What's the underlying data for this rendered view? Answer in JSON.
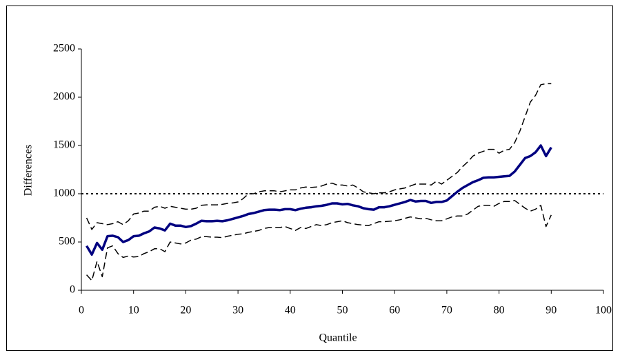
{
  "chart_data": {
    "type": "line",
    "x_label": "Quantile",
    "y_label": "Differences",
    "x": [
      1,
      2,
      3,
      4,
      5,
      6,
      7,
      8,
      9,
      10,
      11,
      12,
      13,
      14,
      15,
      16,
      17,
      18,
      19,
      20,
      21,
      22,
      23,
      24,
      25,
      26,
      27,
      28,
      29,
      30,
      31,
      32,
      33,
      34,
      35,
      36,
      37,
      38,
      39,
      40,
      41,
      42,
      43,
      44,
      45,
      46,
      47,
      48,
      49,
      50,
      51,
      52,
      53,
      54,
      55,
      56,
      57,
      58,
      59,
      60,
      61,
      62,
      63,
      64,
      65,
      66,
      67,
      68,
      69,
      70,
      71,
      72,
      73,
      74,
      75,
      76,
      77,
      78,
      79,
      80,
      81,
      82,
      83,
      84,
      85,
      86,
      87,
      88,
      89,
      90
    ],
    "series": [
      {
        "color": "#000080",
        "linestyle": "solid",
        "linewidth": 3.5,
        "values": [
          460,
          370,
          490,
          420,
          560,
          565,
          550,
          500,
          520,
          560,
          565,
          590,
          610,
          650,
          640,
          620,
          690,
          670,
          670,
          655,
          665,
          690,
          720,
          715,
          715,
          720,
          715,
          725,
          740,
          755,
          770,
          790,
          800,
          815,
          830,
          835,
          835,
          830,
          840,
          840,
          830,
          845,
          855,
          860,
          870,
          875,
          885,
          900,
          900,
          890,
          895,
          880,
          870,
          850,
          840,
          835,
          860,
          860,
          870,
          885,
          900,
          915,
          935,
          920,
          925,
          925,
          905,
          915,
          915,
          930,
          975,
          1020,
          1060,
          1090,
          1120,
          1140,
          1165,
          1170,
          1170,
          1175,
          1180,
          1185,
          1230,
          1300,
          1370,
          1390,
          1430,
          1500,
          1390,
          1480
        ]
      },
      {
        "color": "#000000",
        "linestyle": "dashed",
        "linewidth": 1.5,
        "values": [
          750,
          630,
          700,
          690,
          680,
          690,
          710,
          680,
          720,
          790,
          800,
          820,
          820,
          860,
          870,
          850,
          870,
          860,
          850,
          840,
          840,
          850,
          880,
          885,
          885,
          885,
          890,
          900,
          905,
          915,
          950,
          1000,
          1000,
          1020,
          1030,
          1030,
          1030,
          1020,
          1030,
          1040,
          1040,
          1060,
          1070,
          1065,
          1070,
          1080,
          1100,
          1110,
          1090,
          1090,
          1080,
          1090,
          1060,
          1020,
          1010,
          1000,
          1010,
          1010,
          1020,
          1040,
          1050,
          1060,
          1080,
          1100,
          1100,
          1100,
          1090,
          1130,
          1100,
          1140,
          1180,
          1220,
          1280,
          1330,
          1390,
          1420,
          1440,
          1460,
          1460,
          1420,
          1450,
          1460,
          1530,
          1650,
          1800,
          1950,
          2020,
          2130,
          2140,
          2140
        ]
      },
      {
        "color": "#000000",
        "linestyle": "dashed",
        "linewidth": 1.5,
        "values": [
          160,
          100,
          300,
          140,
          440,
          460,
          380,
          340,
          355,
          345,
          350,
          380,
          400,
          430,
          430,
          400,
          500,
          490,
          480,
          490,
          520,
          530,
          555,
          555,
          550,
          550,
          545,
          560,
          570,
          580,
          585,
          600,
          610,
          620,
          640,
          650,
          650,
          650,
          660,
          640,
          620,
          650,
          640,
          660,
          680,
          670,
          680,
          700,
          710,
          720,
          700,
          690,
          680,
          675,
          670,
          690,
          710,
          710,
          715,
          720,
          730,
          745,
          760,
          750,
          740,
          745,
          730,
          720,
          720,
          740,
          760,
          770,
          770,
          790,
          830,
          870,
          880,
          880,
          870,
          900,
          920,
          920,
          930,
          890,
          850,
          820,
          840,
          880,
          660,
          780
        ]
      }
    ],
    "hlines": [
      {
        "y": 1000,
        "color": "#000000",
        "linestyle": "dotted"
      }
    ],
    "xlim": [
      0,
      100
    ],
    "xticks": [
      0,
      10,
      20,
      30,
      40,
      50,
      60,
      70,
      80,
      90,
      100
    ],
    "ylim": [
      0,
      2500
    ],
    "yticks": [
      0,
      500,
      1000,
      1500,
      2000,
      2500
    ],
    "grid": false
  }
}
